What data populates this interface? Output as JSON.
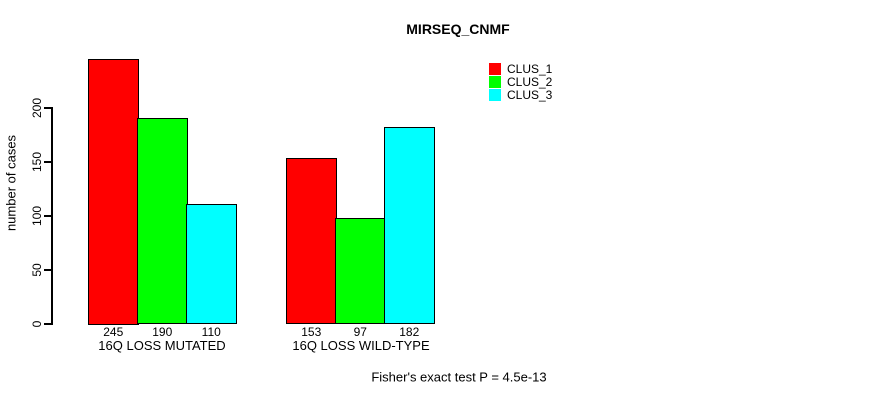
{
  "title": "MIRSEQ_CNMF",
  "footer": "Fisher's exact test P = 4.5e-13",
  "axis": {
    "ylabel": "number of cases",
    "yticks": [
      "0",
      "50",
      "100",
      "150",
      "200"
    ]
  },
  "legend": {
    "items": [
      {
        "label": "CLUS_1",
        "color": "#FF0000"
      },
      {
        "label": "CLUS_2",
        "color": "#00FF00"
      },
      {
        "label": "CLUS_3",
        "color": "#00FFFF"
      }
    ]
  },
  "chart_data": {
    "type": "bar",
    "title": "MIRSEQ_CNMF",
    "xlabel": "",
    "ylabel": "number of cases",
    "categories": [
      "16Q LOSS MUTATED",
      "16Q LOSS WILD-TYPE"
    ],
    "series": [
      {
        "name": "CLUS_1",
        "color": "#FF0000",
        "values": [
          245,
          153
        ]
      },
      {
        "name": "CLUS_2",
        "color": "#00FF00",
        "values": [
          190,
          97
        ]
      },
      {
        "name": "CLUS_3",
        "color": "#00FFFF",
        "values": [
          110,
          182
        ]
      }
    ],
    "bar_value_labels": [
      [
        245,
        190,
        110
      ],
      [
        153,
        97,
        182
      ]
    ],
    "yticks": [
      0,
      50,
      100,
      150,
      200
    ],
    "ylim": [
      0,
      245
    ],
    "grid": false,
    "legend_position": "top-right",
    "annotation": "Fisher's exact test P = 4.5e-13"
  }
}
